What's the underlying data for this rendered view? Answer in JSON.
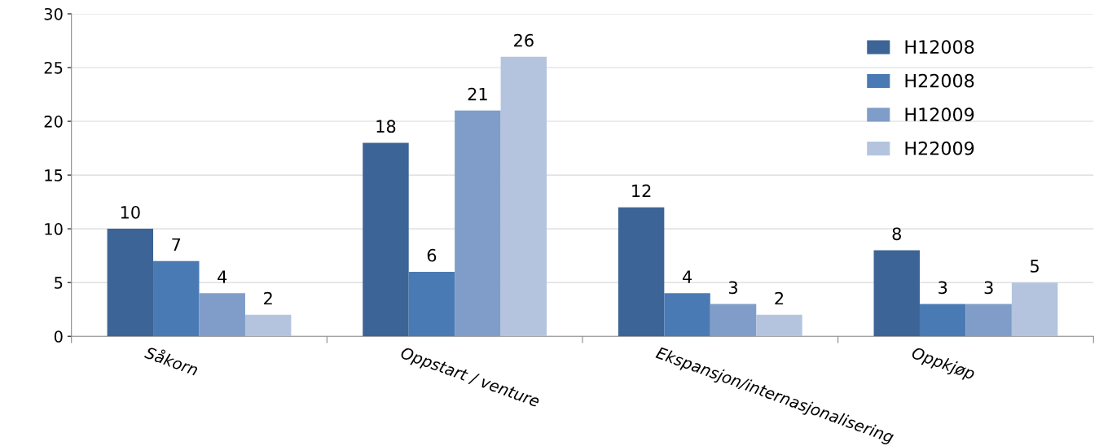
{
  "chart_data": {
    "type": "bar",
    "categories": [
      "Såkorn",
      "Oppstart / venture",
      "Ekspansjon/internasjonalisering",
      "Oppkjøp"
    ],
    "series": [
      {
        "name": "H12008",
        "color": "#3c6496",
        "values": [
          10,
          18,
          12,
          8
        ]
      },
      {
        "name": "H22008",
        "color": "#4a7ab4",
        "values": [
          7,
          6,
          4,
          3
        ]
      },
      {
        "name": "H12009",
        "color": "#7f9dc8",
        "values": [
          4,
          21,
          3,
          3
        ]
      },
      {
        "name": "H22009",
        "color": "#b4c4de",
        "values": [
          2,
          26,
          2,
          5
        ]
      }
    ],
    "ylim": [
      0,
      30
    ],
    "yticks": [
      0,
      5,
      10,
      15,
      20,
      25,
      30
    ],
    "grid": "y",
    "legend": "top right",
    "data_labels": true
  }
}
